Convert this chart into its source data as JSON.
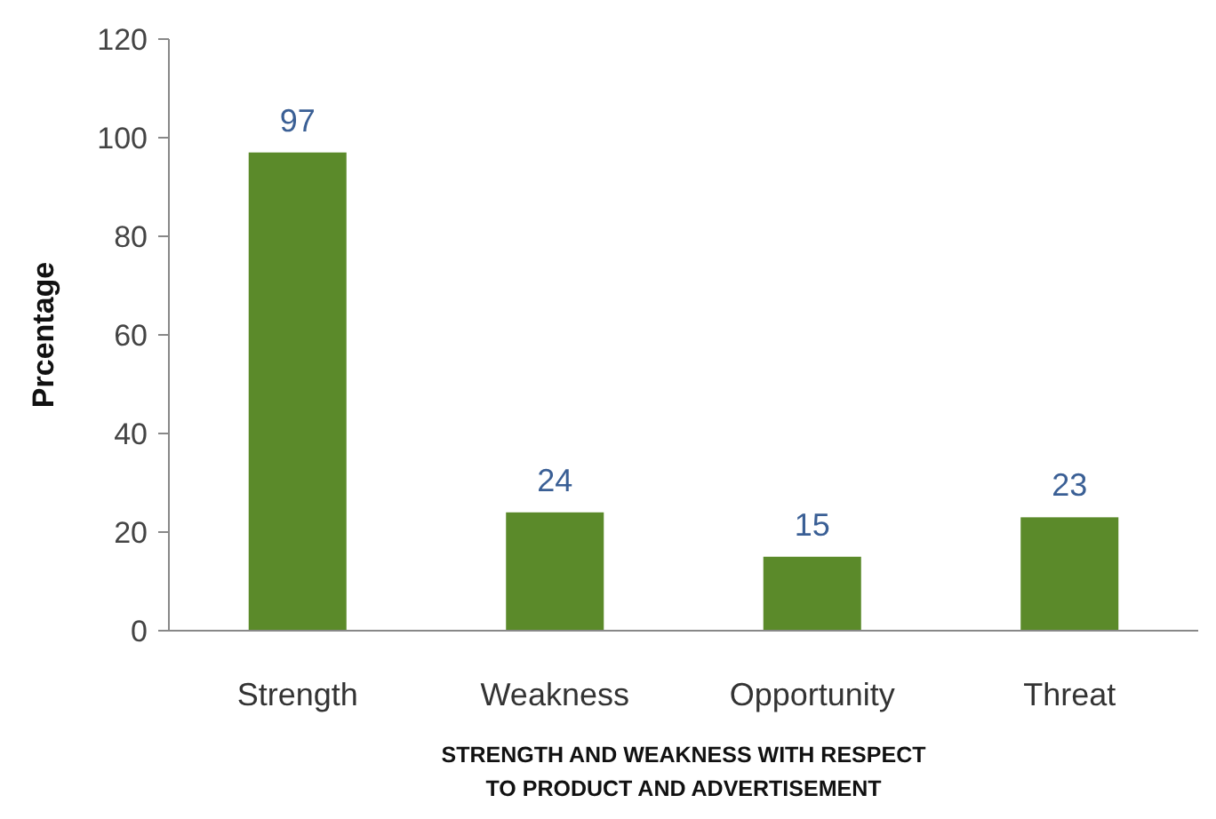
{
  "chart_data": {
    "type": "bar",
    "xlabel": "STRENGTH AND WEAKNESS WITH RESPECT TO PRODUCT AND ADVERTISEMENT",
    "ylabel": "Prcentage",
    "categories": [
      "Strength",
      "Weakness",
      "Opportunity",
      "Threat"
    ],
    "values": [
      97,
      24,
      15,
      23
    ],
    "color": "#5b8a2a",
    "ylim": [
      0,
      120
    ],
    "yticks": [
      0,
      20,
      40,
      60,
      80,
      100,
      120
    ],
    "grid": false,
    "data_labels": true
  }
}
